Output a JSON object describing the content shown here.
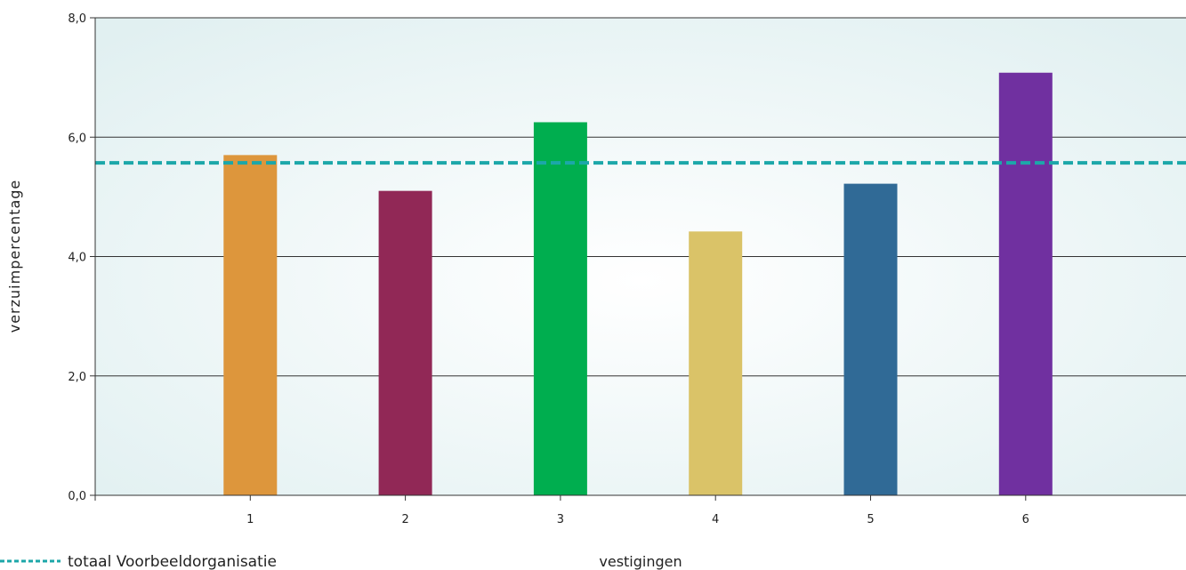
{
  "chart_data": {
    "type": "bar",
    "categories": [
      "1",
      "2",
      "3",
      "4",
      "5",
      "6"
    ],
    "values": [
      5.7,
      5.1,
      6.25,
      4.42,
      5.22,
      7.08
    ],
    "colors": [
      "#DD963C",
      "#912856",
      "#00AE4F",
      "#DAC368",
      "#306A96",
      "#7030A0"
    ],
    "ylabel": "verzuimpercentage",
    "xlabel": "vestigingen",
    "ylim": [
      0,
      8
    ],
    "yticks": [
      "0,0",
      "2,0",
      "4,0",
      "6,0",
      "8,0"
    ],
    "ytick_values": [
      0,
      2,
      4,
      6,
      8
    ],
    "grid": true,
    "reference_line": {
      "name": "totaal Voorbeeldorganisatie",
      "value": 5.57,
      "color": "#1CA7A9",
      "style": "dashed"
    },
    "legend": {
      "placement": "bottom-left"
    }
  }
}
